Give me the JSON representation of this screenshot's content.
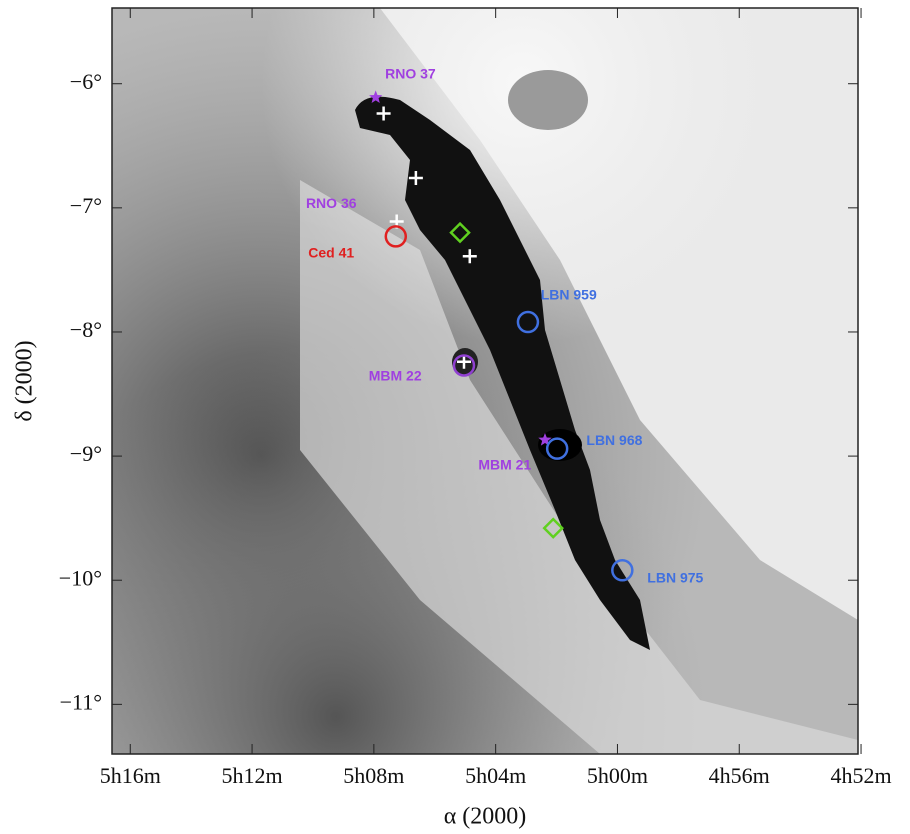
{
  "chart_data": {
    "type": "scatter",
    "xlabel": "α (2000)",
    "ylabel": "δ (2000)",
    "xlim": [
      316.6,
      292.1
    ],
    "ylim": [
      -11.4,
      -5.39
    ],
    "xticks": [
      {
        "value": 316,
        "label": "5h16m"
      },
      {
        "value": 312,
        "label": "5h12m"
      },
      {
        "value": 308,
        "label": "5h08m"
      },
      {
        "value": 304,
        "label": "5h04m"
      },
      {
        "value": 300,
        "label": "5h00m"
      },
      {
        "value": 296,
        "label": "4h56m"
      },
      {
        "value": 292,
        "label": "4h52m"
      }
    ],
    "yticks": [
      {
        "value": -6,
        "label": "−6°"
      },
      {
        "value": -7,
        "label": "−7°"
      },
      {
        "value": -8,
        "label": "−8°"
      },
      {
        "value": -9,
        "label": "−9°"
      },
      {
        "value": -10,
        "label": "−10°"
      },
      {
        "value": -11,
        "label": "−11°"
      }
    ],
    "series": [
      {
        "marker": "plus",
        "color": "#ffffff",
        "x": [
          307.68,
          306.62,
          304.85,
          305.04,
          307.25
        ],
        "y": [
          -6.24,
          -6.76,
          -7.39,
          -8.24,
          -7.11
        ]
      },
      {
        "marker": "star",
        "color": "#a040e0",
        "x": [
          307.94,
          302.38
        ],
        "y": [
          -6.11,
          -8.87
        ]
      },
      {
        "marker": "circle",
        "color": "#e02020",
        "x": [
          307.28
        ],
        "y": [
          -7.23
        ]
      },
      {
        "marker": "diamond",
        "color": "#60d020",
        "x": [
          305.17,
          302.11
        ],
        "y": [
          -7.2,
          -9.58
        ]
      },
      {
        "marker": "circle",
        "color": "#4070e0",
        "x": [
          302.94,
          301.98,
          299.84
        ],
        "y": [
          -7.92,
          -8.94,
          -9.92
        ]
      },
      {
        "marker": "circle",
        "color": "#9040d0",
        "x": [
          305.04
        ],
        "y": [
          -8.27
        ]
      }
    ],
    "annotations": [
      {
        "text": "RNO 37",
        "color": "#a040e0",
        "x": 306.8,
        "y": -5.93
      },
      {
        "text": "RNO 36",
        "color": "#a040e0",
        "x": 309.4,
        "y": -6.97
      },
      {
        "text": "Ced 41",
        "color": "#e02020",
        "x": 309.4,
        "y": -7.37
      },
      {
        "text": "LBN 959",
        "color": "#4070e0",
        "x": 301.6,
        "y": -7.71
      },
      {
        "text": "MBM 22",
        "color": "#a040e0",
        "x": 307.3,
        "y": -8.36
      },
      {
        "text": "LBN 968",
        "color": "#4070e0",
        "x": 300.1,
        "y": -8.88
      },
      {
        "text": "MBM 21",
        "color": "#a040e0",
        "x": 303.7,
        "y": -9.08
      },
      {
        "text": "LBN 975",
        "color": "#4070e0",
        "x": 298.1,
        "y": -9.99
      }
    ]
  }
}
